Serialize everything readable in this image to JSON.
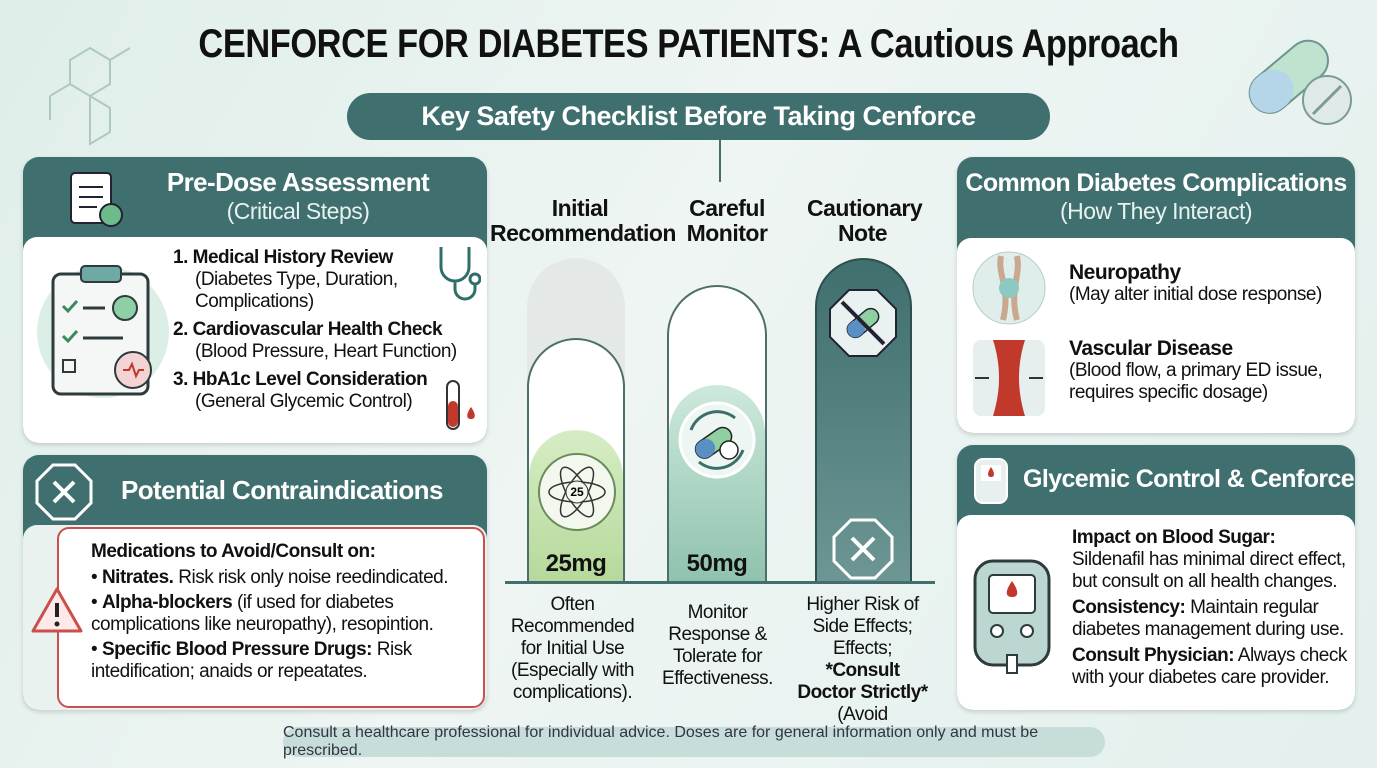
{
  "header": {
    "title": "CENFORCE FOR DIABETES PATIENTS: A Cautious Approach",
    "banner": "Key Safety Checklist Before Taking Cenforce"
  },
  "pre_dose": {
    "title": "Pre-Dose Assessment",
    "subtitle": "(Critical Steps)",
    "items": [
      {
        "heading": "1. Medical History Review",
        "detail": "(Diabetes Type, Duration, Complications)"
      },
      {
        "heading": "2. Cardiovascular Health Check",
        "detail": "(Blood Pressure, Heart Function)"
      },
      {
        "heading": "3. HbA1c Level Consideration",
        "detail": "(General Glycemic Control)"
      }
    ]
  },
  "contraindications": {
    "title": "Potential Contraindications",
    "heading": "Medications to Avoid/Consult on:",
    "items": [
      {
        "bold": "Nitrates.",
        "text": "Risk risk only noise reedindicated."
      },
      {
        "bold": "Alpha-blockers",
        "text": "(if used for diabetes complications like neuropathy), resopintion."
      },
      {
        "bold": "Specific Blood Pressure Drugs:",
        "text": "Risk intedification; anaids or repeatates."
      }
    ]
  },
  "dosage": {
    "columns": [
      {
        "header": "Initial Recommendation",
        "icon_label": "25",
        "dose": "25mg",
        "note": "Often Recommended for Initial Use (Especially with complications)."
      },
      {
        "header": "Careful Monitor",
        "dose": "50mg",
        "note": "Monitor Response & Tolerate for Effectiveness."
      },
      {
        "header": "Cautionary Note",
        "note": "Higher Risk of Side Effects; Effects;",
        "note_bold": "*Consult Doctor Strictly*",
        "note_end": "(Avoid exceeding)."
      }
    ]
  },
  "complications": {
    "title": "Common Diabetes Complications",
    "subtitle": "(How They Interact)",
    "items": [
      {
        "name": "Neuropathy",
        "detail": "(May alter initial dose response)"
      },
      {
        "name": "Vascular Disease",
        "detail": "(Blood flow, a primary ED issue, requires specific dosage)"
      }
    ]
  },
  "glycemic": {
    "title": "Glycemic Control & Cenforce",
    "items": [
      {
        "label": "Impact on Blood Sugar:",
        "text": "Sildenafil has minimal direct effect, but consult on all health changes."
      },
      {
        "label": "Consistency:",
        "text": "Maintain regular diabetes management during use."
      },
      {
        "label": "Consult Physician:",
        "text": "Always check with your diabetes care provider."
      }
    ]
  },
  "footer": {
    "disclaimer": "Consult a healthcare professional for individual advice. Doses are for general information only and must be prescribed."
  }
}
